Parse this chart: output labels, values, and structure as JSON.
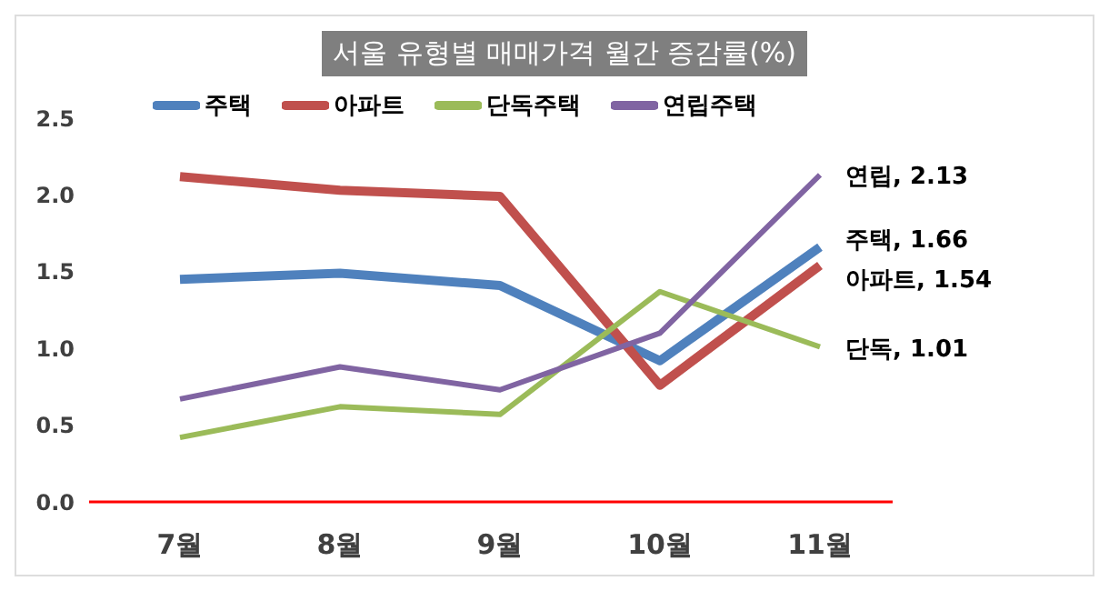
{
  "chart_data": {
    "type": "line",
    "title": "서울 유형별 매매가격 월간 증감률(%)",
    "categories": [
      "7월",
      "8월",
      "9월",
      "10월",
      "11월"
    ],
    "series": [
      {
        "name": "주택",
        "color": "#4f81bd",
        "values": [
          1.45,
          1.49,
          1.41,
          0.92,
          1.66
        ],
        "value_labels": [
          null,
          null,
          null,
          null,
          "주택, 1.66"
        ]
      },
      {
        "name": "아파트",
        "color": "#c0504d",
        "values": [
          2.12,
          2.03,
          1.99,
          0.76,
          1.54
        ],
        "value_labels": [
          null,
          null,
          null,
          null,
          "아파트, 1.54"
        ]
      },
      {
        "name": "단독주택",
        "color": "#9bbb59",
        "values": [
          0.42,
          0.62,
          0.57,
          1.37,
          1.01
        ],
        "value_labels": [
          null,
          null,
          null,
          null,
          "단독, 1.01"
        ]
      },
      {
        "name": "연립주택",
        "color": "#8064a2",
        "values": [
          0.67,
          0.88,
          0.73,
          1.1,
          2.13
        ],
        "value_labels": [
          null,
          null,
          null,
          null,
          "연립, 2.13"
        ]
      }
    ],
    "ylim": [
      0,
      2.5
    ],
    "yticks": [
      {
        "value": 0,
        "label": "0.0"
      },
      {
        "value": 0.5,
        "label": "0.5"
      },
      {
        "value": 1,
        "label": "1.0"
      },
      {
        "value": 1.5,
        "label": "1.5"
      },
      {
        "value": 2,
        "label": "2.0"
      },
      {
        "value": 2.5,
        "label": "2.5"
      }
    ],
    "grid": false,
    "legend": "top",
    "marker": "none",
    "line_style": "solid"
  }
}
